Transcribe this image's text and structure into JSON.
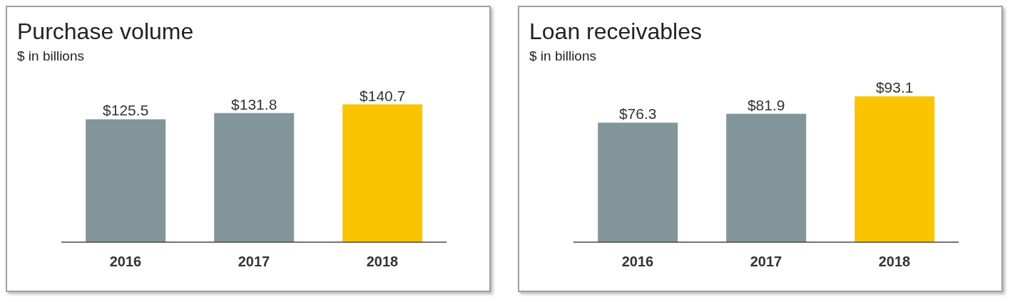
{
  "chart_data": [
    {
      "type": "bar",
      "title": "Purchase volume",
      "subtitle": "$ in billions",
      "categories": [
        "2016",
        "2017",
        "2018"
      ],
      "values": [
        125.5,
        131.8,
        140.7
      ],
      "colors": [
        "#82959a",
        "#82959a",
        "#fac400"
      ],
      "value_labels": [
        "$125.5",
        "$131.8",
        "$140.7"
      ],
      "grid": false,
      "legend": false
    },
    {
      "type": "bar",
      "title": "Loan receivables",
      "subtitle": "$ in billions",
      "categories": [
        "2016",
        "2017",
        "2018"
      ],
      "values": [
        76.3,
        81.9,
        93.1
      ],
      "colors": [
        "#82959a",
        "#82959a",
        "#fac400"
      ],
      "value_labels": [
        "$76.3",
        "$81.9",
        "$93.1"
      ],
      "grid": false,
      "legend": false
    }
  ]
}
